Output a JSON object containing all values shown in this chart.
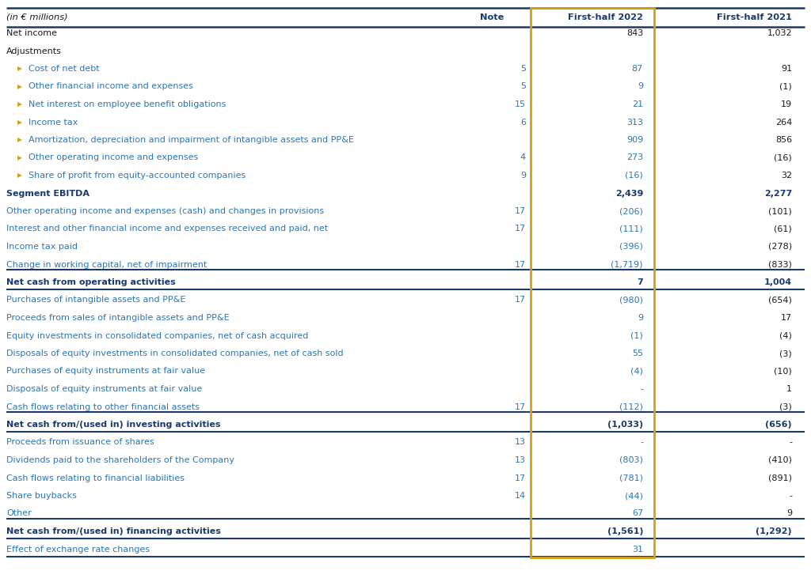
{
  "title_col": "(in € millions)",
  "col_note": "Note",
  "col_2022": "First-half 2022",
  "col_2021": "First-half 2021",
  "bg_color": "#ffffff",
  "gold": "#d4a017",
  "dark_blue": "#1a3a6b",
  "blue_text": "#2e75b6",
  "black_text": "#1a1a1a",
  "rows": [
    {
      "label": "Net income",
      "indent": 0,
      "bullet": false,
      "bold": false,
      "note": "",
      "v2022": "843",
      "v2021": "1,032",
      "blue22": false,
      "blue21": false
    },
    {
      "label": "Adjustments",
      "indent": 0,
      "bullet": false,
      "bold": false,
      "note": "",
      "v2022": "",
      "v2021": "",
      "blue22": false,
      "blue21": false
    },
    {
      "label": "Cost of net debt",
      "indent": 1,
      "bullet": true,
      "bold": false,
      "note": "5",
      "v2022": "87",
      "v2021": "91",
      "blue22": true,
      "blue21": false
    },
    {
      "label": "Other financial income and expenses",
      "indent": 1,
      "bullet": true,
      "bold": false,
      "note": "5",
      "v2022": "9",
      "v2021": "(1)",
      "blue22": true,
      "blue21": false
    },
    {
      "label": "Net interest on employee benefit obligations",
      "indent": 1,
      "bullet": true,
      "bold": false,
      "note": "15",
      "v2022": "21",
      "v2021": "19",
      "blue22": true,
      "blue21": false
    },
    {
      "label": "Income tax",
      "indent": 1,
      "bullet": true,
      "bold": false,
      "note": "6",
      "v2022": "313",
      "v2021": "264",
      "blue22": true,
      "blue21": false
    },
    {
      "label": "Amortization, depreciation and impairment of intangible assets and PP&E",
      "indent": 1,
      "bullet": true,
      "bold": false,
      "note": "",
      "v2022": "909",
      "v2021": "856",
      "blue22": true,
      "blue21": false
    },
    {
      "label": "Other operating income and expenses",
      "indent": 1,
      "bullet": true,
      "bold": false,
      "note": "4",
      "v2022": "273",
      "v2021": "(16)",
      "blue22": true,
      "blue21": false
    },
    {
      "label": "Share of profit from equity-accounted companies",
      "indent": 1,
      "bullet": true,
      "bold": false,
      "note": "9",
      "v2022": "(16)",
      "v2021": "32",
      "blue22": true,
      "blue21": false
    },
    {
      "label": "Segment EBITDA",
      "indent": 0,
      "bullet": false,
      "bold": true,
      "note": "",
      "v2022": "2,439",
      "v2021": "2,277",
      "blue22": true,
      "blue21": true
    },
    {
      "label": "Other operating income and expenses (cash) and changes in provisions",
      "indent": 0,
      "bullet": false,
      "bold": false,
      "note": "17",
      "v2022": "(206)",
      "v2021": "(101)",
      "blue22": true,
      "blue21": false
    },
    {
      "label": "Interest and other financial income and expenses received and paid, net",
      "indent": 0,
      "bullet": false,
      "bold": false,
      "note": "17",
      "v2022": "(111)",
      "v2021": "(61)",
      "blue22": true,
      "blue21": false
    },
    {
      "label": "Income tax paid",
      "indent": 0,
      "bullet": false,
      "bold": false,
      "note": "",
      "v2022": "(396)",
      "v2021": "(278)",
      "blue22": true,
      "blue21": false
    },
    {
      "label": "Change in working capital, net of impairment",
      "indent": 0,
      "bullet": false,
      "bold": false,
      "note": "17",
      "v2022": "(1,719)",
      "v2021": "(833)",
      "blue22": true,
      "blue21": false
    },
    {
      "label": "Net cash from operating activities",
      "indent": 0,
      "bullet": false,
      "bold": true,
      "note": "",
      "v2022": "7",
      "v2021": "1,004",
      "blue22": true,
      "blue21": true,
      "sep_above": true,
      "sep_below": true
    },
    {
      "label": "Purchases of intangible assets and PP&E",
      "indent": 0,
      "bullet": false,
      "bold": false,
      "note": "17",
      "v2022": "(980)",
      "v2021": "(654)",
      "blue22": true,
      "blue21": false
    },
    {
      "label": "Proceeds from sales of intangible assets and PP&E",
      "indent": 0,
      "bullet": false,
      "bold": false,
      "note": "",
      "v2022": "9",
      "v2021": "17",
      "blue22": true,
      "blue21": false
    },
    {
      "label": "Equity investments in consolidated companies, net of cash acquired",
      "indent": 0,
      "bullet": false,
      "bold": false,
      "note": "",
      "v2022": "(1)",
      "v2021": "(4)",
      "blue22": true,
      "blue21": false
    },
    {
      "label": "Disposals of equity investments in consolidated companies, net of cash sold",
      "indent": 0,
      "bullet": false,
      "bold": false,
      "note": "",
      "v2022": "55",
      "v2021": "(3)",
      "blue22": true,
      "blue21": false
    },
    {
      "label": "Purchases of equity instruments at fair value",
      "indent": 0,
      "bullet": false,
      "bold": false,
      "note": "",
      "v2022": "(4)",
      "v2021": "(10)",
      "blue22": true,
      "blue21": false
    },
    {
      "label": "Disposals of equity instruments at fair value",
      "indent": 0,
      "bullet": false,
      "bold": false,
      "note": "",
      "v2022": "-",
      "v2021": "1",
      "blue22": true,
      "blue21": false
    },
    {
      "label": "Cash flows relating to other financial assets",
      "indent": 0,
      "bullet": false,
      "bold": false,
      "note": "17",
      "v2022": "(112)",
      "v2021": "(3)",
      "blue22": true,
      "blue21": false
    },
    {
      "label": "Net cash from/(used in) investing activities",
      "indent": 0,
      "bullet": false,
      "bold": true,
      "note": "",
      "v2022": "(1,033)",
      "v2021": "(656)",
      "blue22": true,
      "blue21": true,
      "sep_above": true,
      "sep_below": true
    },
    {
      "label": "Proceeds from issuance of shares",
      "indent": 0,
      "bullet": false,
      "bold": false,
      "note": "13",
      "v2022": "-",
      "v2021": "-",
      "blue22": true,
      "blue21": false
    },
    {
      "label": "Dividends paid to the shareholders of the Company",
      "indent": 0,
      "bullet": false,
      "bold": false,
      "note": "13",
      "v2022": "(803)",
      "v2021": "(410)",
      "blue22": true,
      "blue21": false
    },
    {
      "label": "Cash flows relating to financial liabilities",
      "indent": 0,
      "bullet": false,
      "bold": false,
      "note": "17",
      "v2022": "(781)",
      "v2021": "(891)",
      "blue22": true,
      "blue21": false
    },
    {
      "label": "Share buybacks",
      "indent": 0,
      "bullet": false,
      "bold": false,
      "note": "14",
      "v2022": "(44)",
      "v2021": "-",
      "blue22": true,
      "blue21": false
    },
    {
      "label": "Other",
      "indent": 0,
      "bullet": false,
      "bold": false,
      "note": "",
      "v2022": "67",
      "v2021": "9",
      "blue22": true,
      "blue21": false
    },
    {
      "label": "Net cash from/(used in) financing activities",
      "indent": 0,
      "bullet": false,
      "bold": true,
      "note": "",
      "v2022": "(1,561)",
      "v2021": "(1,292)",
      "blue22": true,
      "blue21": true,
      "sep_above": true,
      "sep_below": true
    },
    {
      "label": "Effect of exchange rate changes",
      "indent": 0,
      "bullet": false,
      "bold": false,
      "note": "",
      "v2022": "31",
      "v2021": "",
      "blue22": true,
      "blue21": false,
      "last": true
    }
  ],
  "font_size": 8.0,
  "header_font_size": 8.2
}
